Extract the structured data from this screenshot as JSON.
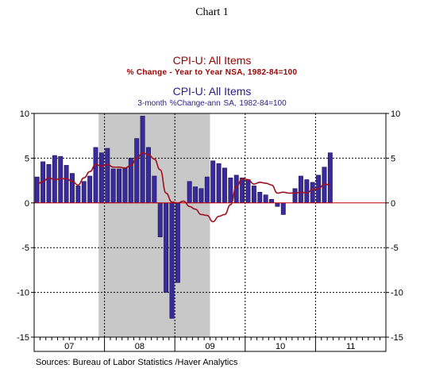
{
  "header": {
    "chart_number": "Chart 1",
    "title_line1": "CPI-U: All Items",
    "subtitle_line1": "% Change - Year to Year     NSA, 1982-84=100",
    "title_line2": "CPI-U: All Items",
    "subtitle_line2": "3-month %Change-ann       SA, 1982-84=100"
  },
  "footer": {
    "source": "Sources:  Bureau of Labor Statistics /Haver Analytics"
  },
  "colors": {
    "bars": "#3a2a9a",
    "bar_edge": "#1a0f55",
    "line": "#a01020",
    "zero_line": "#c00000",
    "recession_shading": "#c8c8c8",
    "grid": "#000000"
  },
  "chart_data": {
    "type": "bar",
    "ylim": [
      -15,
      10
    ],
    "y_ticks": [
      10,
      5,
      0,
      -5,
      -10,
      -15
    ],
    "y_tick_labels": [
      "10",
      "5",
      "0",
      "-5",
      "-10",
      "-15"
    ],
    "x_year_labels": [
      "07",
      "08",
      "09",
      "10",
      "11"
    ],
    "grid": true,
    "recession_shading": {
      "start": "2007-12",
      "end": "2009-06"
    },
    "series": [
      {
        "name": "CPI-U: All Items, 3-month %Change-ann, SA",
        "type": "bar",
        "x": [
          "2007-01",
          "2007-02",
          "2007-03",
          "2007-04",
          "2007-05",
          "2007-06",
          "2007-07",
          "2007-08",
          "2007-09",
          "2007-10",
          "2007-11",
          "2007-12",
          "2008-01",
          "2008-02",
          "2008-03",
          "2008-04",
          "2008-05",
          "2008-06",
          "2008-07",
          "2008-08",
          "2008-09",
          "2008-10",
          "2008-11",
          "2008-12",
          "2009-01",
          "2009-02",
          "2009-03",
          "2009-04",
          "2009-05",
          "2009-06",
          "2009-07",
          "2009-08",
          "2009-09",
          "2009-10",
          "2009-11",
          "2009-12",
          "2010-01",
          "2010-02",
          "2010-03",
          "2010-04",
          "2010-05",
          "2010-06",
          "2010-07",
          "2010-08",
          "2010-09",
          "2010-10",
          "2010-11",
          "2010-12",
          "2011-01",
          "2011-02",
          "2011-03"
        ],
        "values": [
          2.9,
          4.6,
          4.3,
          5.3,
          5.2,
          4.2,
          3.3,
          1.9,
          2.4,
          3.0,
          6.2,
          5.6,
          6.1,
          3.8,
          3.8,
          3.9,
          5.0,
          7.2,
          9.7,
          6.2,
          3.0,
          -3.8,
          -10.0,
          -12.9,
          -8.9,
          0.0,
          2.4,
          1.8,
          1.6,
          2.9,
          4.7,
          4.4,
          3.9,
          2.8,
          3.1,
          2.8,
          2.6,
          1.9,
          1.2,
          0.9,
          0.4,
          -0.4,
          -1.3,
          0.0,
          1.6,
          3.0,
          2.6,
          2.3,
          3.1,
          4.0,
          5.6
        ]
      },
      {
        "name": "CPI-U: All Items, % Change - Year to Year, NSA",
        "type": "line",
        "x": [
          "2007-01",
          "2007-02",
          "2007-03",
          "2007-04",
          "2007-05",
          "2007-06",
          "2007-07",
          "2007-08",
          "2007-09",
          "2007-10",
          "2007-11",
          "2007-12",
          "2008-01",
          "2008-02",
          "2008-03",
          "2008-04",
          "2008-05",
          "2008-06",
          "2008-07",
          "2008-08",
          "2008-09",
          "2008-10",
          "2008-11",
          "2008-12",
          "2009-01",
          "2009-02",
          "2009-03",
          "2009-04",
          "2009-05",
          "2009-06",
          "2009-07",
          "2009-08",
          "2009-09",
          "2009-10",
          "2009-11",
          "2009-12",
          "2010-01",
          "2010-02",
          "2010-03",
          "2010-04",
          "2010-05",
          "2010-06",
          "2010-07",
          "2010-08",
          "2010-09",
          "2010-10",
          "2010-11",
          "2010-12",
          "2011-01",
          "2011-02",
          "2011-03"
        ],
        "values": [
          2.1,
          2.4,
          2.8,
          2.6,
          2.7,
          2.7,
          2.4,
          2.0,
          2.8,
          3.5,
          4.3,
          4.1,
          4.3,
          4.0,
          4.0,
          3.9,
          4.2,
          5.0,
          5.6,
          5.4,
          4.9,
          3.7,
          1.1,
          0.1,
          0.0,
          0.2,
          -0.4,
          -0.7,
          -1.3,
          -1.4,
          -2.1,
          -1.5,
          -1.3,
          -0.2,
          1.8,
          2.7,
          2.6,
          2.1,
          2.3,
          2.2,
          2.0,
          1.1,
          1.2,
          1.1,
          1.1,
          1.2,
          1.1,
          1.5,
          1.6,
          2.1,
          2.0
        ]
      }
    ]
  }
}
